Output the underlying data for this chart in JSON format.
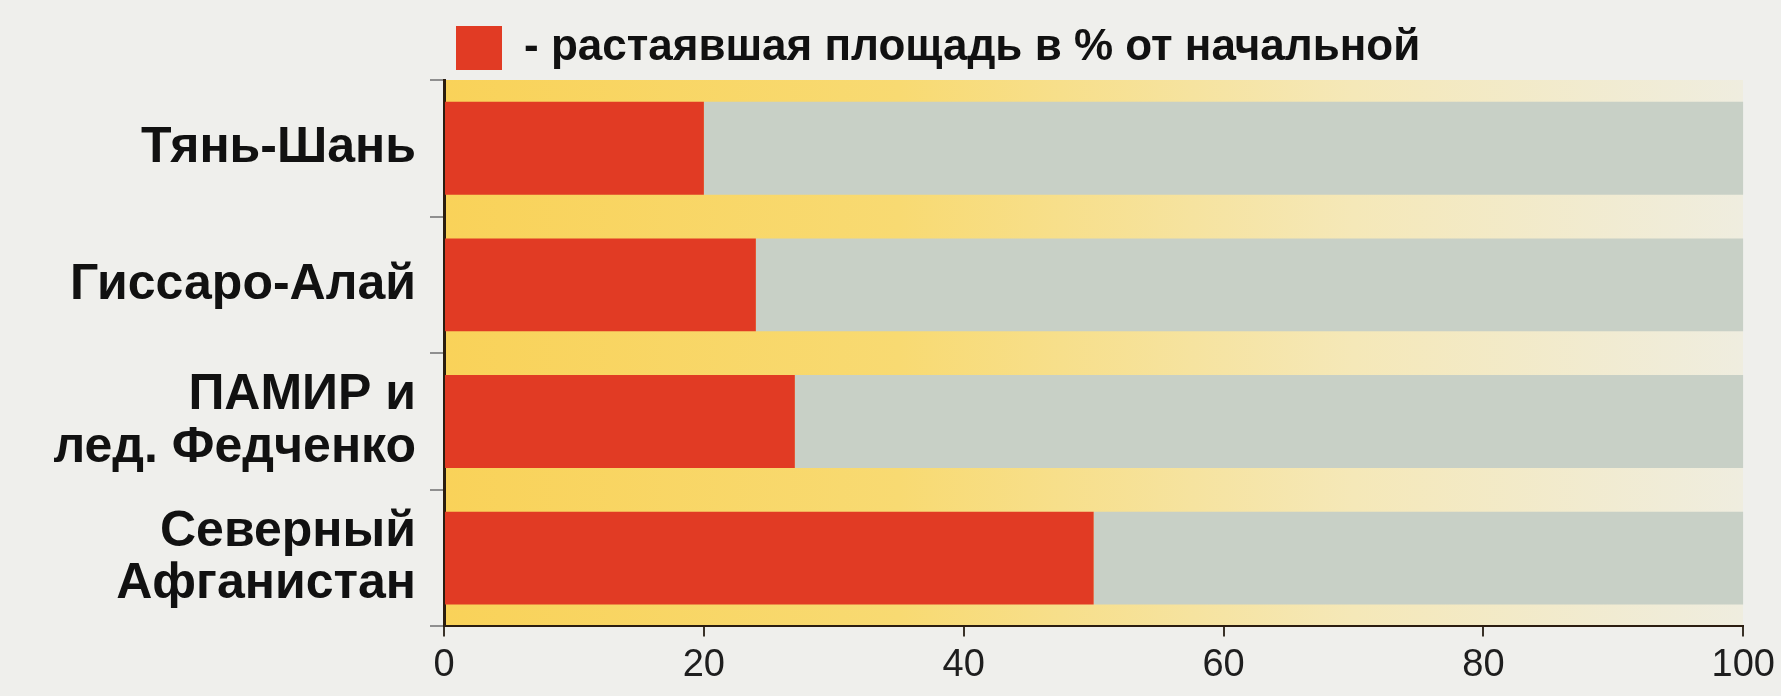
{
  "chart_data": {
    "type": "bar",
    "orientation": "horizontal",
    "stacked": true,
    "categories": [
      "Тянь-Шань",
      "Гиссаро-Алай",
      "ПАМИР и лед. Федченко",
      "Северный Афганистан"
    ],
    "series": [
      {
        "name": "- растаявшая площадь в % от начальной",
        "color": "#e13b24",
        "values": [
          20,
          24,
          27,
          50
        ]
      },
      {
        "color": "#c8d0c6",
        "values": [
          80,
          76,
          73,
          50
        ]
      }
    ],
    "xlim": [
      0,
      100
    ],
    "xticks": [
      0,
      20,
      40,
      60,
      80,
      100
    ],
    "grid": false,
    "legend": "top left"
  }
}
